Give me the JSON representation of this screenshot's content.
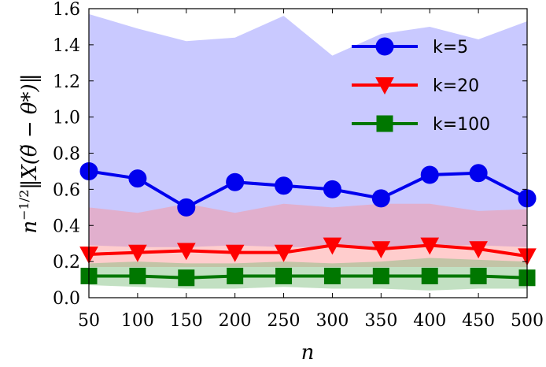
{
  "chart_data": {
    "type": "line",
    "xlabel": "n",
    "ylabel": "n^{-1/2}‖X(θ̃ − θ*)‖",
    "ylabel_parts": {
      "n": "n",
      "exp": "−1/2",
      "rest": "‖X(θ̃ − θ*)‖"
    },
    "x": [
      50,
      100,
      150,
      200,
      250,
      300,
      350,
      400,
      450,
      500
    ],
    "xlim": [
      50,
      500
    ],
    "ylim": [
      0.0,
      1.6
    ],
    "xticks": [
      "50",
      "100",
      "150",
      "200",
      "250",
      "300",
      "350",
      "400",
      "450",
      "500"
    ],
    "yticks": [
      "0.0",
      "0.2",
      "0.4",
      "0.6",
      "0.8",
      "1.0",
      "1.2",
      "1.4",
      "1.6"
    ],
    "grid": false,
    "legend_position": "top-right",
    "series": [
      {
        "name": "k=5",
        "color": "#0000ee",
        "band_color": "#8888ff",
        "marker": "circle",
        "values": [
          0.7,
          0.66,
          0.5,
          0.64,
          0.62,
          0.6,
          0.55,
          0.68,
          0.69,
          0.55
        ],
        "upper": [
          1.57,
          1.49,
          1.42,
          1.44,
          1.56,
          1.34,
          1.46,
          1.5,
          1.43,
          1.53
        ],
        "lower": [
          0.29,
          0.28,
          0.28,
          0.29,
          0.28,
          0.28,
          0.28,
          0.29,
          0.29,
          0.28
        ]
      },
      {
        "name": "k=20",
        "color": "#ff0000",
        "band_color": "#ff9090",
        "marker": "triangle-down",
        "values": [
          0.24,
          0.25,
          0.26,
          0.25,
          0.25,
          0.29,
          0.27,
          0.29,
          0.27,
          0.23
        ],
        "upper": [
          0.5,
          0.47,
          0.52,
          0.47,
          0.52,
          0.5,
          0.52,
          0.52,
          0.48,
          0.49
        ],
        "lower": [
          0.17,
          0.17,
          0.17,
          0.17,
          0.17,
          0.17,
          0.17,
          0.17,
          0.17,
          0.17
        ]
      },
      {
        "name": "k=100",
        "color": "#007700",
        "band_color": "#77bb77",
        "marker": "square",
        "values": [
          0.12,
          0.12,
          0.11,
          0.12,
          0.12,
          0.12,
          0.12,
          0.12,
          0.12,
          0.11
        ],
        "upper": [
          0.19,
          0.2,
          0.19,
          0.19,
          0.2,
          0.19,
          0.2,
          0.22,
          0.21,
          0.2
        ],
        "lower": [
          0.07,
          0.06,
          0.05,
          0.05,
          0.06,
          0.05,
          0.05,
          0.04,
          0.05,
          0.05
        ]
      }
    ]
  }
}
